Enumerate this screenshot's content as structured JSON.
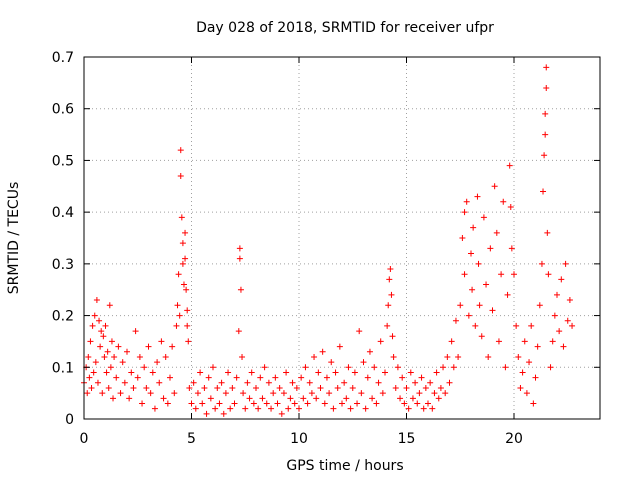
{
  "chart_data": {
    "type": "scatter",
    "title": "Day 028 of 2018, SRMTID for receiver ufpr",
    "xlabel": "GPS time / hours",
    "ylabel": "SRMTID / TECUs",
    "xlim": [
      0,
      24
    ],
    "ylim": [
      0,
      0.7
    ],
    "xticks": [
      0,
      5,
      10,
      15,
      20
    ],
    "yticks": [
      0,
      0.1,
      0.2,
      0.3,
      0.4,
      0.5,
      0.6,
      0.7
    ],
    "ytick_labels": [
      "0",
      "0.1",
      "0.2",
      "0.3",
      "0.4",
      "0.5",
      "0.6",
      "0.7"
    ],
    "grid": true,
    "marker": "+",
    "color": "#ff0000",
    "series": [
      {
        "name": "SRMTID",
        "points": [
          [
            0.0,
            0.07
          ],
          [
            0.1,
            0.1
          ],
          [
            0.15,
            0.05
          ],
          [
            0.2,
            0.12
          ],
          [
            0.25,
            0.08
          ],
          [
            0.3,
            0.15
          ],
          [
            0.35,
            0.06
          ],
          [
            0.4,
            0.18
          ],
          [
            0.45,
            0.09
          ],
          [
            0.5,
            0.2
          ],
          [
            0.55,
            0.11
          ],
          [
            0.6,
            0.23
          ],
          [
            0.65,
            0.07
          ],
          [
            0.7,
            0.19
          ],
          [
            0.75,
            0.14
          ],
          [
            0.8,
            0.17
          ],
          [
            0.85,
            0.05
          ],
          [
            0.9,
            0.16
          ],
          [
            0.95,
            0.12
          ],
          [
            1.0,
            0.18
          ],
          [
            1.05,
            0.09
          ],
          [
            1.1,
            0.13
          ],
          [
            1.15,
            0.06
          ],
          [
            1.2,
            0.22
          ],
          [
            1.25,
            0.1
          ],
          [
            1.3,
            0.15
          ],
          [
            1.35,
            0.04
          ],
          [
            1.4,
            0.12
          ],
          [
            1.5,
            0.08
          ],
          [
            1.6,
            0.14
          ],
          [
            1.7,
            0.05
          ],
          [
            1.8,
            0.11
          ],
          [
            1.9,
            0.07
          ],
          [
            2.0,
            0.13
          ],
          [
            2.1,
            0.04
          ],
          [
            2.2,
            0.09
          ],
          [
            2.3,
            0.06
          ],
          [
            2.4,
            0.17
          ],
          [
            2.5,
            0.08
          ],
          [
            2.6,
            0.12
          ],
          [
            2.7,
            0.03
          ],
          [
            2.8,
            0.1
          ],
          [
            2.9,
            0.06
          ],
          [
            3.0,
            0.14
          ],
          [
            3.1,
            0.05
          ],
          [
            3.2,
            0.09
          ],
          [
            3.3,
            0.02
          ],
          [
            3.4,
            0.11
          ],
          [
            3.5,
            0.07
          ],
          [
            3.6,
            0.15
          ],
          [
            3.7,
            0.04
          ],
          [
            3.8,
            0.12
          ],
          [
            3.9,
            0.03
          ],
          [
            4.0,
            0.08
          ],
          [
            4.1,
            0.14
          ],
          [
            4.2,
            0.05
          ],
          [
            4.3,
            0.18
          ],
          [
            4.35,
            0.22
          ],
          [
            4.4,
            0.28
          ],
          [
            4.45,
            0.2
          ],
          [
            4.5,
            0.52
          ],
          [
            4.5,
            0.47
          ],
          [
            4.55,
            0.39
          ],
          [
            4.6,
            0.34
          ],
          [
            4.6,
            0.3
          ],
          [
            4.65,
            0.26
          ],
          [
            4.7,
            0.36
          ],
          [
            4.7,
            0.31
          ],
          [
            4.75,
            0.25
          ],
          [
            4.8,
            0.21
          ],
          [
            4.8,
            0.18
          ],
          [
            4.85,
            0.15
          ],
          [
            4.9,
            0.06
          ],
          [
            5.0,
            0.03
          ],
          [
            5.1,
            0.07
          ],
          [
            5.2,
            0.02
          ],
          [
            5.3,
            0.05
          ],
          [
            5.4,
            0.09
          ],
          [
            5.5,
            0.03
          ],
          [
            5.6,
            0.06
          ],
          [
            5.7,
            0.01
          ],
          [
            5.8,
            0.08
          ],
          [
            5.9,
            0.04
          ],
          [
            6.0,
            0.1
          ],
          [
            6.1,
            0.02
          ],
          [
            6.2,
            0.06
          ],
          [
            6.3,
            0.03
          ],
          [
            6.4,
            0.07
          ],
          [
            6.5,
            0.01
          ],
          [
            6.6,
            0.05
          ],
          [
            6.7,
            0.09
          ],
          [
            6.8,
            0.02
          ],
          [
            6.9,
            0.06
          ],
          [
            7.0,
            0.03
          ],
          [
            7.1,
            0.08
          ],
          [
            7.2,
            0.17
          ],
          [
            7.25,
            0.33
          ],
          [
            7.25,
            0.31
          ],
          [
            7.3,
            0.25
          ],
          [
            7.35,
            0.12
          ],
          [
            7.4,
            0.05
          ],
          [
            7.5,
            0.02
          ],
          [
            7.6,
            0.07
          ],
          [
            7.7,
            0.04
          ],
          [
            7.8,
            0.09
          ],
          [
            7.9,
            0.03
          ],
          [
            8.0,
            0.06
          ],
          [
            8.1,
            0.02
          ],
          [
            8.2,
            0.08
          ],
          [
            8.3,
            0.04
          ],
          [
            8.4,
            0.1
          ],
          [
            8.5,
            0.03
          ],
          [
            8.6,
            0.07
          ],
          [
            8.7,
            0.02
          ],
          [
            8.8,
            0.05
          ],
          [
            8.9,
            0.08
          ],
          [
            9.0,
            0.03
          ],
          [
            9.1,
            0.06
          ],
          [
            9.2,
            0.01
          ],
          [
            9.3,
            0.05
          ],
          [
            9.4,
            0.09
          ],
          [
            9.5,
            0.02
          ],
          [
            9.6,
            0.04
          ],
          [
            9.7,
            0.07
          ],
          [
            9.8,
            0.03
          ],
          [
            9.9,
            0.06
          ],
          [
            10.0,
            0.02
          ],
          [
            10.1,
            0.08
          ],
          [
            10.2,
            0.04
          ],
          [
            10.3,
            0.1
          ],
          [
            10.4,
            0.03
          ],
          [
            10.5,
            0.07
          ],
          [
            10.6,
            0.05
          ],
          [
            10.7,
            0.12
          ],
          [
            10.8,
            0.04
          ],
          [
            10.9,
            0.09
          ],
          [
            11.0,
            0.06
          ],
          [
            11.1,
            0.13
          ],
          [
            11.2,
            0.03
          ],
          [
            11.3,
            0.08
          ],
          [
            11.4,
            0.05
          ],
          [
            11.5,
            0.11
          ],
          [
            11.6,
            0.02
          ],
          [
            11.7,
            0.09
          ],
          [
            11.8,
            0.06
          ],
          [
            11.9,
            0.14
          ],
          [
            12.0,
            0.03
          ],
          [
            12.1,
            0.07
          ],
          [
            12.2,
            0.04
          ],
          [
            12.3,
            0.1
          ],
          [
            12.4,
            0.02
          ],
          [
            12.5,
            0.06
          ],
          [
            12.6,
            0.09
          ],
          [
            12.7,
            0.03
          ],
          [
            12.8,
            0.17
          ],
          [
            12.9,
            0.05
          ],
          [
            13.0,
            0.11
          ],
          [
            13.1,
            0.02
          ],
          [
            13.2,
            0.08
          ],
          [
            13.3,
            0.13
          ],
          [
            13.4,
            0.04
          ],
          [
            13.5,
            0.1
          ],
          [
            13.6,
            0.03
          ],
          [
            13.7,
            0.07
          ],
          [
            13.8,
            0.15
          ],
          [
            13.9,
            0.05
          ],
          [
            14.0,
            0.09
          ],
          [
            14.1,
            0.18
          ],
          [
            14.15,
            0.22
          ],
          [
            14.2,
            0.27
          ],
          [
            14.25,
            0.29
          ],
          [
            14.3,
            0.24
          ],
          [
            14.35,
            0.16
          ],
          [
            14.4,
            0.12
          ],
          [
            14.5,
            0.06
          ],
          [
            14.6,
            0.1
          ],
          [
            14.7,
            0.04
          ],
          [
            14.8,
            0.08
          ],
          [
            14.9,
            0.03
          ],
          [
            15.0,
            0.06
          ],
          [
            15.1,
            0.02
          ],
          [
            15.2,
            0.09
          ],
          [
            15.3,
            0.04
          ],
          [
            15.4,
            0.07
          ],
          [
            15.5,
            0.03
          ],
          [
            15.6,
            0.05
          ],
          [
            15.7,
            0.08
          ],
          [
            15.8,
            0.02
          ],
          [
            15.9,
            0.06
          ],
          [
            16.0,
            0.03
          ],
          [
            16.1,
            0.07
          ],
          [
            16.2,
            0.02
          ],
          [
            16.3,
            0.05
          ],
          [
            16.4,
            0.09
          ],
          [
            16.5,
            0.04
          ],
          [
            16.6,
            0.06
          ],
          [
            16.7,
            0.1
          ],
          [
            16.8,
            0.05
          ],
          [
            16.9,
            0.12
          ],
          [
            17.0,
            0.07
          ],
          [
            17.1,
            0.15
          ],
          [
            17.2,
            0.1
          ],
          [
            17.3,
            0.19
          ],
          [
            17.4,
            0.12
          ],
          [
            17.5,
            0.22
          ],
          [
            17.6,
            0.35
          ],
          [
            17.7,
            0.4
          ],
          [
            17.7,
            0.28
          ],
          [
            17.8,
            0.42
          ],
          [
            17.9,
            0.2
          ],
          [
            18.0,
            0.32
          ],
          [
            18.05,
            0.25
          ],
          [
            18.1,
            0.37
          ],
          [
            18.2,
            0.18
          ],
          [
            18.3,
            0.43
          ],
          [
            18.35,
            0.3
          ],
          [
            18.4,
            0.22
          ],
          [
            18.5,
            0.16
          ],
          [
            18.6,
            0.39
          ],
          [
            18.7,
            0.26
          ],
          [
            18.8,
            0.12
          ],
          [
            18.9,
            0.33
          ],
          [
            19.0,
            0.21
          ],
          [
            19.1,
            0.45
          ],
          [
            19.2,
            0.36
          ],
          [
            19.3,
            0.15
          ],
          [
            19.4,
            0.28
          ],
          [
            19.5,
            0.42
          ],
          [
            19.6,
            0.1
          ],
          [
            19.7,
            0.24
          ],
          [
            19.8,
            0.49
          ],
          [
            19.85,
            0.41
          ],
          [
            19.9,
            0.33
          ],
          [
            20.0,
            0.28
          ],
          [
            20.1,
            0.18
          ],
          [
            20.2,
            0.12
          ],
          [
            20.3,
            0.06
          ],
          [
            20.4,
            0.09
          ],
          [
            20.5,
            0.15
          ],
          [
            20.6,
            0.05
          ],
          [
            20.7,
            0.11
          ],
          [
            20.8,
            0.18
          ],
          [
            20.9,
            0.03
          ],
          [
            21.0,
            0.08
          ],
          [
            21.1,
            0.14
          ],
          [
            21.2,
            0.22
          ],
          [
            21.3,
            0.3
          ],
          [
            21.35,
            0.44
          ],
          [
            21.4,
            0.51
          ],
          [
            21.45,
            0.55
          ],
          [
            21.45,
            0.59
          ],
          [
            21.5,
            0.64
          ],
          [
            21.5,
            0.68
          ],
          [
            21.55,
            0.36
          ],
          [
            21.6,
            0.28
          ],
          [
            21.7,
            0.1
          ],
          [
            21.8,
            0.15
          ],
          [
            21.9,
            0.2
          ],
          [
            22.0,
            0.24
          ],
          [
            22.1,
            0.17
          ],
          [
            22.2,
            0.27
          ],
          [
            22.3,
            0.14
          ],
          [
            22.4,
            0.3
          ],
          [
            22.5,
            0.19
          ],
          [
            22.6,
            0.23
          ],
          [
            22.7,
            0.18
          ]
        ]
      }
    ]
  }
}
